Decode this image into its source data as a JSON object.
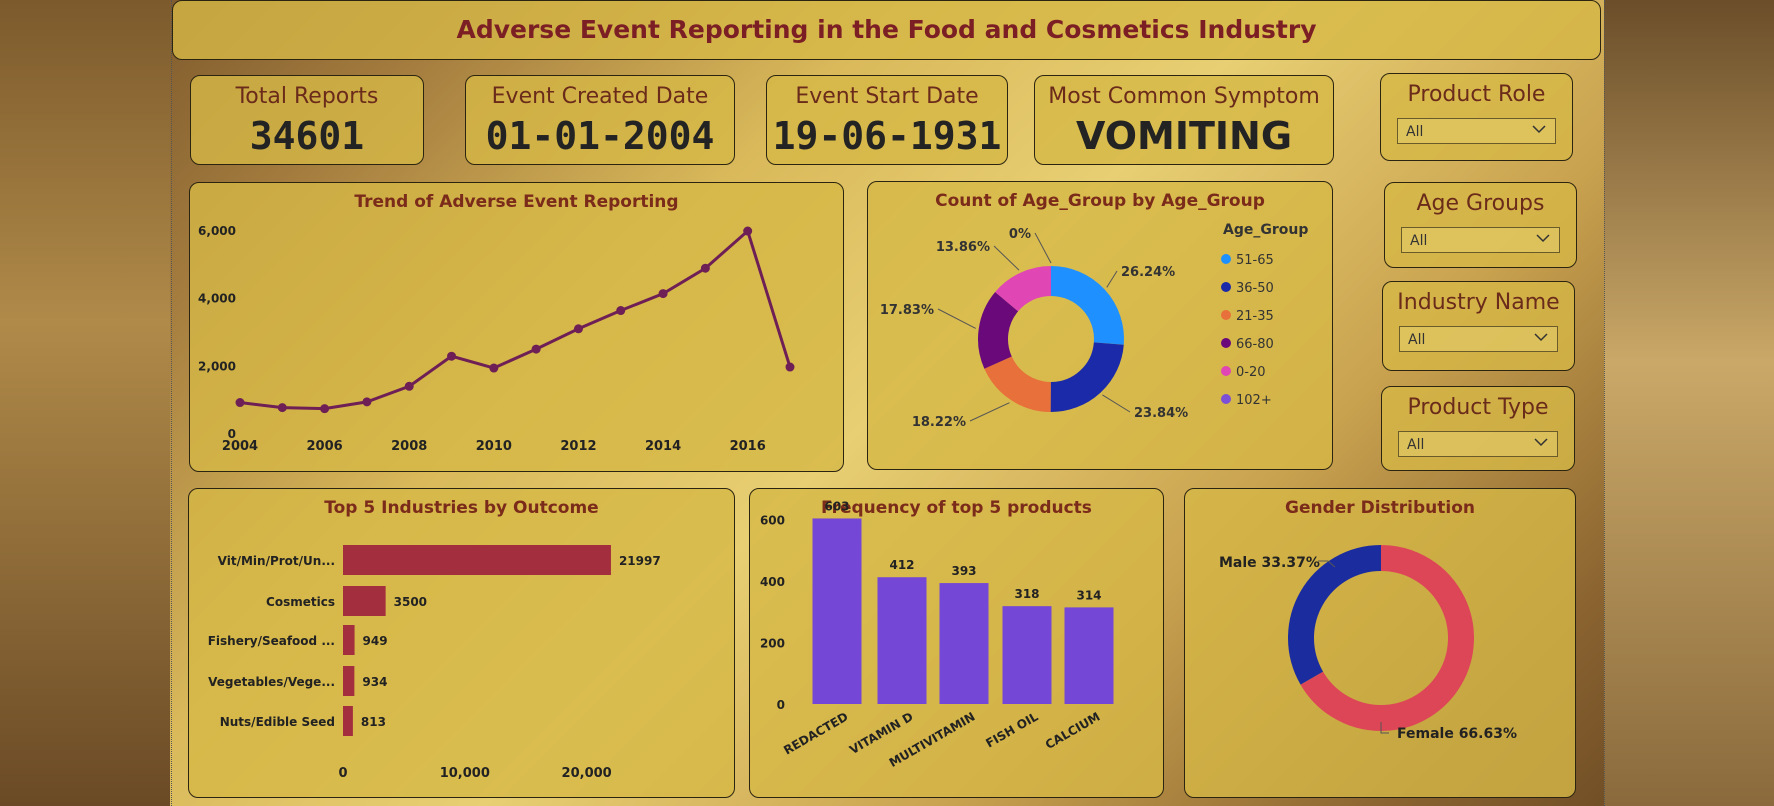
{
  "title": "Adverse Event Reporting in the Food and Cosmetics Industry",
  "kpis": {
    "total_reports": {
      "label": "Total Reports",
      "value": "34601"
    },
    "event_created": {
      "label": "Event Created Date",
      "value": "01-01-2004"
    },
    "event_start": {
      "label": "Event Start Date",
      "value": "19-06-1931"
    },
    "symptom": {
      "label": "Most Common Symptom",
      "value": "VOMITING"
    }
  },
  "slicers": {
    "product_role": {
      "label": "Product Role",
      "value": "All"
    },
    "age_groups": {
      "label": "Age Groups",
      "value": "All"
    },
    "industry_name": {
      "label": "Industry Name",
      "value": "All"
    },
    "product_type": {
      "label": "Product Type",
      "value": "All"
    }
  },
  "chart_data": [
    {
      "type": "line",
      "title": "Trend of Adverse Event Reporting",
      "x": [
        2004,
        2005,
        2006,
        2007,
        2008,
        2009,
        2010,
        2011,
        2012,
        2013,
        2014,
        2015,
        2016,
        2017
      ],
      "values": [
        900,
        750,
        720,
        920,
        1380,
        2270,
        1920,
        2480,
        3080,
        3620,
        4120,
        4870,
        5970,
        1950
      ],
      "x_ticks": [
        "2004",
        "2006",
        "2008",
        "2010",
        "2012",
        "2014",
        "2016"
      ],
      "y_ticks": [
        "0",
        "2,000",
        "4,000",
        "6,000"
      ],
      "ylim": [
        0,
        6000
      ],
      "color": "#6e1f55"
    },
    {
      "type": "pie",
      "title": "Count of Age_Group by Age_Group",
      "legend_title": "Age_Group",
      "labels": [
        "51-65",
        "36-50",
        "21-35",
        "66-80",
        "0-20",
        "102+"
      ],
      "values": [
        26.24,
        23.84,
        18.22,
        17.83,
        13.86,
        0
      ],
      "value_labels": [
        "26.24%",
        "23.84%",
        "18.22%",
        "17.83%",
        "13.86%",
        "0%"
      ],
      "colors": [
        "#1e90ff",
        "#1a2aa8",
        "#e8703a",
        "#6a0a7a",
        "#e046b4",
        "#7b4fd6"
      ],
      "legend_placement": "right"
    },
    {
      "type": "bar",
      "title": "Top 5 Industries by Outcome",
      "orientation": "horizontal",
      "categories": [
        "Vit/Min/Prot/Un...",
        "Cosmetics",
        "Fishery/Seafood ...",
        "Vegetables/Vege...",
        "Nuts/Edible Seed"
      ],
      "values": [
        21997,
        3500,
        949,
        934,
        813
      ],
      "value_labels": [
        "21997",
        "3500",
        "949",
        "934",
        "813"
      ],
      "x_ticks": [
        "0",
        "10,000",
        "20,000"
      ],
      "xlim": [
        0,
        22000
      ],
      "color": "#a32f3e"
    },
    {
      "type": "bar",
      "title": "Frequency of top 5 products",
      "categories": [
        "REDACTED",
        "VITAMIN D",
        "MULTIVITAMIN",
        "FISH OIL",
        "CALCIUM"
      ],
      "values": [
        603,
        412,
        393,
        318,
        314
      ],
      "value_labels": [
        "603",
        "412",
        "393",
        "318",
        "314"
      ],
      "y_ticks": [
        "0",
        "200",
        "400",
        "600"
      ],
      "ylim": [
        0,
        650
      ],
      "color": "#7447d6"
    },
    {
      "type": "pie",
      "title": "Gender Distribution",
      "labels": [
        "Female",
        "Male"
      ],
      "values": [
        66.63,
        33.37
      ],
      "value_labels": [
        "Female 66.63%",
        "Male 33.37%"
      ],
      "colors": [
        "#dd4657",
        "#1b2c9e"
      ]
    }
  ]
}
